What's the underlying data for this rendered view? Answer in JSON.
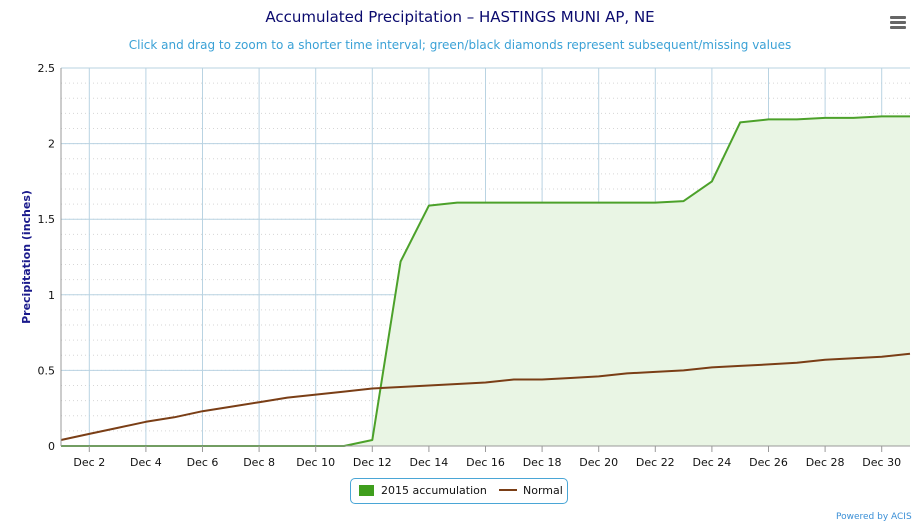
{
  "header": {
    "title": "Accumulated Precipitation – HASTINGS MUNI AP, NE",
    "subtitle": "Click and drag to zoom to a shorter time interval; green/black diamonds represent subsequent/missing values"
  },
  "menu": {
    "icon": "hamburger-menu-icon"
  },
  "credit": "Powered by ACIS",
  "colors": {
    "accum": "#4ca12a",
    "accum_fill": "#e9f5e4",
    "normal": "#7a3e16",
    "grid": "#b9d3e2",
    "axis_label": "#1a1a8c"
  },
  "chart_data": {
    "type": "area",
    "title": "Accumulated Precipitation – HASTINGS MUNI AP, NE",
    "xlabel": "",
    "ylabel": "Precipitation (inches)",
    "ylim": [
      0,
      2.5
    ],
    "yticks": [
      "0",
      "0.5",
      "1",
      "1.5",
      "2",
      "2.5"
    ],
    "xlim": [
      1,
      31
    ],
    "xticks": [
      {
        "day": 2,
        "label": "Dec 2"
      },
      {
        "day": 4,
        "label": "Dec 4"
      },
      {
        "day": 6,
        "label": "Dec 6"
      },
      {
        "day": 8,
        "label": "Dec 8"
      },
      {
        "day": 10,
        "label": "Dec 10"
      },
      {
        "day": 12,
        "label": "Dec 12"
      },
      {
        "day": 14,
        "label": "Dec 14"
      },
      {
        "day": 16,
        "label": "Dec 16"
      },
      {
        "day": 18,
        "label": "Dec 18"
      },
      {
        "day": 20,
        "label": "Dec 20"
      },
      {
        "day": 22,
        "label": "Dec 22"
      },
      {
        "day": 24,
        "label": "Dec 24"
      },
      {
        "day": 26,
        "label": "Dec 26"
      },
      {
        "day": 28,
        "label": "Dec 28"
      },
      {
        "day": 30,
        "label": "Dec 30"
      }
    ],
    "x": [
      1,
      2,
      3,
      4,
      5,
      6,
      7,
      8,
      9,
      10,
      11,
      12,
      13,
      14,
      15,
      16,
      17,
      18,
      19,
      20,
      21,
      22,
      23,
      24,
      25,
      26,
      27,
      28,
      29,
      30,
      31
    ],
    "grid": true,
    "legend_position": "bottom-center",
    "series": [
      {
        "name": "2015 accumulation",
        "kind": "area",
        "values": [
          0,
          0,
          0,
          0,
          0,
          0,
          0,
          0,
          0,
          0,
          0,
          0.04,
          1.22,
          1.59,
          1.61,
          1.61,
          1.61,
          1.61,
          1.61,
          1.61,
          1.61,
          1.61,
          1.62,
          1.75,
          2.14,
          2.16,
          2.16,
          2.17,
          2.17,
          2.18,
          2.18
        ]
      },
      {
        "name": "Normal",
        "kind": "line",
        "values": [
          0.04,
          0.08,
          0.12,
          0.16,
          0.19,
          0.23,
          0.26,
          0.29,
          0.32,
          0.34,
          0.36,
          0.38,
          0.39,
          0.4,
          0.41,
          0.42,
          0.44,
          0.44,
          0.45,
          0.46,
          0.48,
          0.49,
          0.5,
          0.52,
          0.53,
          0.54,
          0.55,
          0.57,
          0.58,
          0.59,
          0.61
        ]
      }
    ]
  }
}
